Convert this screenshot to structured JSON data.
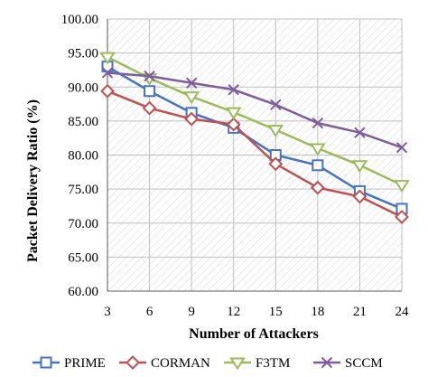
{
  "chart_data": {
    "type": "line",
    "x": [
      3,
      6,
      9,
      12,
      15,
      18,
      21,
      24
    ],
    "series": [
      {
        "name": "PRIME",
        "color": "#4472C4",
        "marker": "square",
        "values": [
          93.0,
          89.4,
          86.2,
          84.0,
          80.0,
          78.5,
          74.7,
          72.1
        ]
      },
      {
        "name": "CORMAN",
        "color": "#C0504D",
        "marker": "diamond",
        "values": [
          89.4,
          86.9,
          85.3,
          84.5,
          78.7,
          75.2,
          73.9,
          70.9
        ]
      },
      {
        "name": "F3TM",
        "color": "#9BBB59",
        "marker": "triangle",
        "values": [
          94.4,
          91.3,
          88.6,
          86.3,
          83.7,
          81.0,
          78.5,
          75.6
        ]
      },
      {
        "name": "SCCM",
        "color": "#7F5C9B",
        "marker": "x",
        "values": [
          92.1,
          91.6,
          90.6,
          89.6,
          87.4,
          84.7,
          83.3,
          81.1
        ]
      }
    ],
    "ylim": [
      60,
      100
    ],
    "yticks": [
      "60.00",
      "65.00",
      "70.00",
      "75.00",
      "80.00",
      "85.00",
      "90.00",
      "95.00",
      "100.00"
    ],
    "xticks": [
      "3",
      "6",
      "9",
      "12",
      "15",
      "18",
      "21",
      "24"
    ],
    "xlabel": "Number of Attackers",
    "ylabel": "Packet Delivery Ratio (%)",
    "grid": true,
    "legend_position": "bottom"
  }
}
